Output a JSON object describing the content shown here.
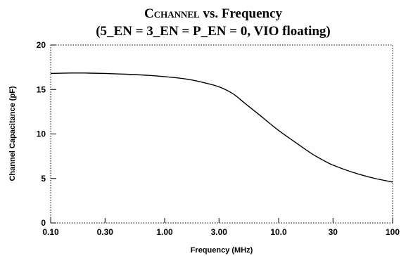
{
  "chart_data": {
    "type": "line",
    "title_main": "C",
    "title_subscript": "CHANNEL",
    "title_rest": " vs. Frequency",
    "subtitle": "(5_EN = 3_EN = P_EN = 0, VIO floating)",
    "xlabel": "Frequency (MHz)",
    "ylabel": "Channel Capacitance (pF)",
    "x_scale": "log",
    "xlim": [
      0.1,
      100
    ],
    "ylim": [
      0,
      20
    ],
    "x_ticks": [
      0.1,
      0.3,
      1,
      3,
      10,
      30,
      100
    ],
    "x_tick_labels": [
      "0.10",
      "0.30",
      "1.00",
      "3.00",
      "10.0",
      "30",
      "100"
    ],
    "y_ticks": [
      0,
      5,
      10,
      15,
      20
    ],
    "y_tick_labels": [
      "0",
      "5",
      "10",
      "15",
      "20"
    ],
    "grid": false,
    "frame": "dotted",
    "line_color": "#000000",
    "series": [
      {
        "x": [
          0.1,
          0.15,
          0.2,
          0.3,
          0.5,
          0.7,
          1.0,
          1.5,
          2.0,
          3.0,
          4.0,
          5.0,
          7.0,
          10.0,
          15.0,
          20.0,
          25.0,
          30.0,
          40.0,
          50.0,
          70.0,
          100.0
        ],
        "y": [
          16.8,
          16.85,
          16.85,
          16.8,
          16.7,
          16.6,
          16.45,
          16.2,
          15.9,
          15.3,
          14.5,
          13.5,
          12.0,
          10.4,
          8.8,
          7.7,
          7.0,
          6.5,
          5.9,
          5.5,
          5.0,
          4.6
        ]
      }
    ]
  }
}
